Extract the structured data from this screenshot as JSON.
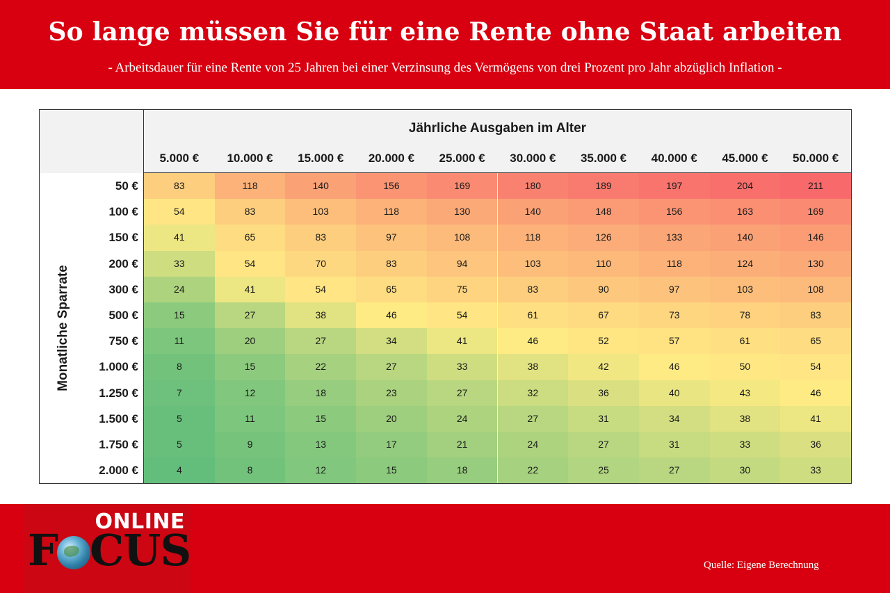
{
  "header": {
    "title": "So lange müssen Sie für eine Rente ohne Staat arbeiten",
    "subtitle": "- Arbeitsdauer für eine Rente von 25 Jahren bei einer Verzinsung des Vermögens von drei Prozent pro Jahr abzüglich Inflation -"
  },
  "footer": {
    "logo_top": "ONLINE",
    "logo_left": "F",
    "logo_right": "CUS",
    "source": "Quelle: Eigene Berechnung"
  },
  "colors": {
    "brand_red": "#d80010",
    "scale_low": "#63be7b",
    "scale_mid": "#ffeb84",
    "scale_high": "#f8696b"
  },
  "chart_data": {
    "type": "heatmap",
    "xlabel": "Jährliche Ausgaben im Alter",
    "ylabel": "Monatliche Sparrate",
    "columns": [
      "5.000 €",
      "10.000 €",
      "15.000 €",
      "20.000 €",
      "25.000 €",
      "30.000 €",
      "35.000 €",
      "40.000 €",
      "45.000 €",
      "50.000 €"
    ],
    "rows": [
      "50 €",
      "100 €",
      "150 €",
      "200 €",
      "300 €",
      "500 €",
      "750 €",
      "1.000 €",
      "1.250 €",
      "1.500 €",
      "1.750 €",
      "2.000 €"
    ],
    "values": [
      [
        83,
        118,
        140,
        156,
        169,
        180,
        189,
        197,
        204,
        211
      ],
      [
        54,
        83,
        103,
        118,
        130,
        140,
        148,
        156,
        163,
        169
      ],
      [
        41,
        65,
        83,
        97,
        108,
        118,
        126,
        133,
        140,
        146
      ],
      [
        33,
        54,
        70,
        83,
        94,
        103,
        110,
        118,
        124,
        130
      ],
      [
        24,
        41,
        54,
        65,
        75,
        83,
        90,
        97,
        103,
        108
      ],
      [
        15,
        27,
        38,
        46,
        54,
        61,
        67,
        73,
        78,
        83
      ],
      [
        11,
        20,
        27,
        34,
        41,
        46,
        52,
        57,
        61,
        65
      ],
      [
        8,
        15,
        22,
        27,
        33,
        38,
        42,
        46,
        50,
        54
      ],
      [
        7,
        12,
        18,
        23,
        27,
        32,
        36,
        40,
        43,
        46
      ],
      [
        5,
        11,
        15,
        20,
        24,
        27,
        31,
        34,
        38,
        41
      ],
      [
        5,
        9,
        13,
        17,
        21,
        24,
        27,
        31,
        33,
        36
      ],
      [
        4,
        8,
        12,
        15,
        18,
        22,
        25,
        27,
        30,
        33
      ]
    ]
  }
}
